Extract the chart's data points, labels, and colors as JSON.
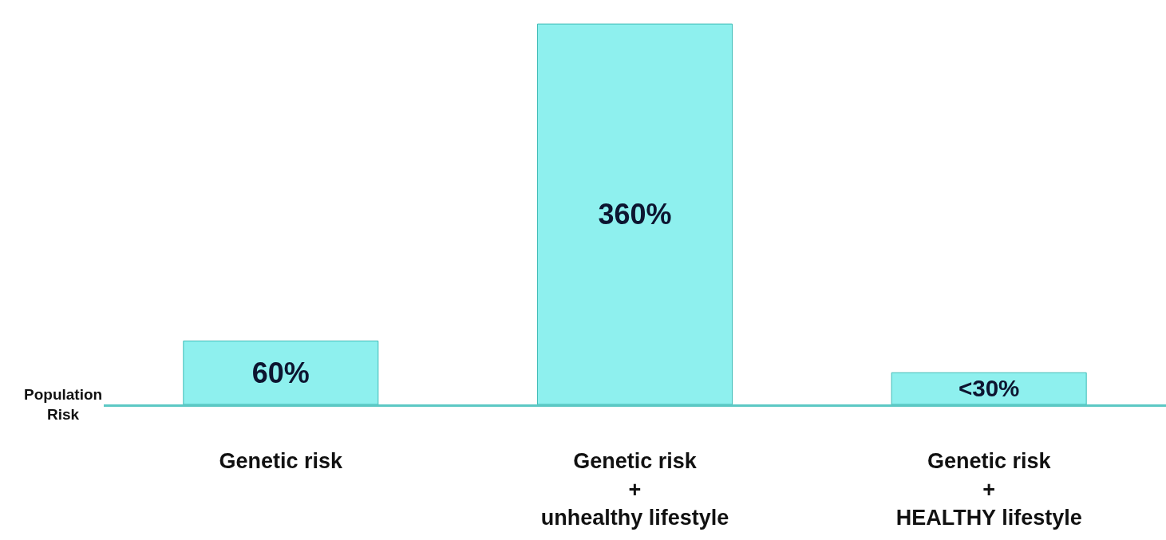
{
  "chart_data": {
    "type": "bar",
    "categories": [
      "Genetic risk",
      "Genetic risk\n+\nunhealthy lifestyle",
      "Genetic risk\n+\nHEALTHY lifestyle"
    ],
    "values": [
      60,
      360,
      30
    ],
    "value_labels": [
      "60%",
      "360%",
      "<30%"
    ],
    "color": "#8ef0ee",
    "ylabel": "Population\nRisk",
    "tick_labels": "x",
    "grid": false
  }
}
